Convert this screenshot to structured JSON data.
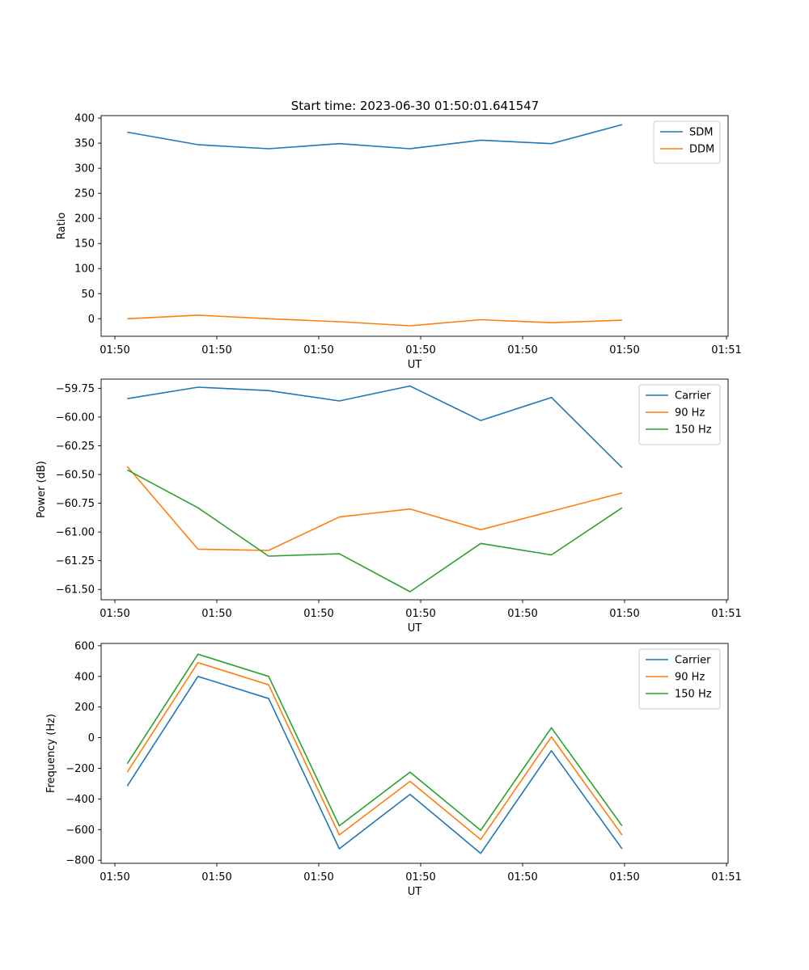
{
  "figure": {
    "title": "Start time: 2023-06-30 01:50:01.641547"
  },
  "chart_data": [
    {
      "type": "line",
      "title": "Start time: 2023-06-30 01:50:01.641547",
      "xlabel": "UT",
      "ylabel": "Ratio",
      "x_tick_labels": [
        "01:50",
        "01:50",
        "01:50",
        "01:50",
        "01:50",
        "01:50",
        "01:51"
      ],
      "y_ticks": [
        0,
        50,
        100,
        150,
        200,
        250,
        300,
        350,
        400
      ],
      "ylim": [
        -35,
        405
      ],
      "xlim": [
        0.63,
        9.5
      ],
      "x": [
        1,
        2,
        3,
        4,
        5,
        6,
        7,
        8
      ],
      "grid": false,
      "legend_position": "top-right",
      "series": [
        {
          "name": "SDM",
          "color": "#1f77b4",
          "values": [
            372,
            347,
            339,
            349,
            339,
            356,
            349,
            387
          ]
        },
        {
          "name": "DDM",
          "color": "#ff7f0e",
          "values": [
            0,
            7,
            0,
            -6,
            -14,
            -2,
            -8,
            -3
          ]
        }
      ]
    },
    {
      "type": "line",
      "xlabel": "UT",
      "ylabel": "Power (dB)",
      "x_tick_labels": [
        "01:50",
        "01:50",
        "01:50",
        "01:50",
        "01:50",
        "01:50",
        "01:51"
      ],
      "y_ticks": [
        -61.5,
        -61.25,
        -61.0,
        -60.75,
        -60.5,
        -60.25,
        -60.0,
        -59.75
      ],
      "y_tick_labels": [
        "−61.50",
        "−61.25",
        "−61.00",
        "−60.75",
        "−60.50",
        "−60.25",
        "−60.00",
        "−59.75"
      ],
      "ylim": [
        -61.59,
        -59.67
      ],
      "xlim": [
        0.63,
        9.5
      ],
      "x": [
        1,
        2,
        3,
        4,
        5,
        6,
        7,
        8
      ],
      "grid": false,
      "legend_position": "top-right",
      "series": [
        {
          "name": "Carrier",
          "color": "#1f77b4",
          "values": [
            -59.84,
            -59.74,
            -59.77,
            -59.86,
            -59.73,
            -60.03,
            -59.83,
            -60.44
          ]
        },
        {
          "name": "90 Hz",
          "color": "#ff7f0e",
          "values": [
            -60.43,
            -61.15,
            -61.16,
            -60.87,
            -60.8,
            -60.98,
            -60.82,
            -60.66
          ]
        },
        {
          "name": "150 Hz",
          "color": "#2ca02c",
          "values": [
            -60.46,
            -60.79,
            -61.21,
            -61.19,
            -61.52,
            -61.1,
            -61.2,
            -60.79
          ]
        }
      ]
    },
    {
      "type": "line",
      "xlabel": "UT",
      "ylabel": "Frequency (Hz)",
      "x_tick_labels": [
        "01:50",
        "01:50",
        "01:50",
        "01:50",
        "01:50",
        "01:50",
        "01:51"
      ],
      "y_ticks": [
        -800,
        -600,
        -400,
        -200,
        0,
        200,
        400,
        600
      ],
      "y_tick_labels": [
        "−800",
        "−600",
        "−400",
        "−200",
        "0",
        "200",
        "400",
        "600"
      ],
      "ylim": [
        -820,
        615
      ],
      "xlim": [
        0.63,
        9.5
      ],
      "x": [
        1,
        2,
        3,
        4,
        5,
        6,
        7,
        8
      ],
      "grid": false,
      "legend_position": "top-right",
      "series": [
        {
          "name": "Carrier",
          "color": "#1f77b4",
          "values": [
            -315,
            400,
            255,
            -725,
            -370,
            -755,
            -85,
            -725
          ]
        },
        {
          "name": "90 Hz",
          "color": "#ff7f0e",
          "values": [
            -225,
            490,
            345,
            -635,
            -285,
            -665,
            5,
            -635
          ]
        },
        {
          "name": "150 Hz",
          "color": "#2ca02c",
          "values": [
            -170,
            545,
            400,
            -575,
            -225,
            -605,
            65,
            -575
          ]
        }
      ]
    }
  ]
}
